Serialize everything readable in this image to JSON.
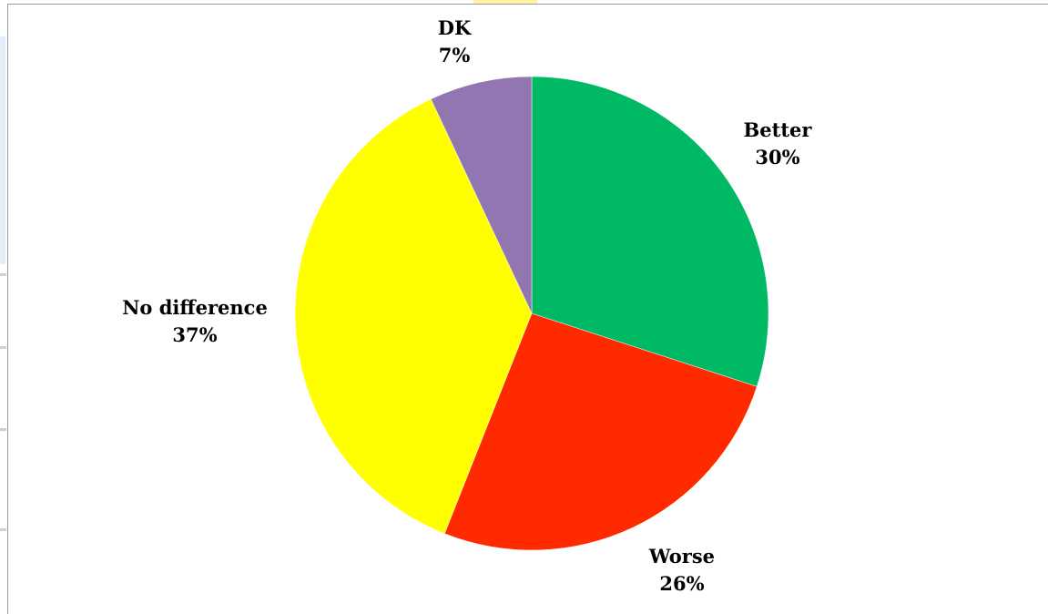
{
  "chart_data": {
    "type": "pie",
    "title": "",
    "slices": [
      {
        "label": "Better",
        "value": 30,
        "display": "30%",
        "color": "#00b964"
      },
      {
        "label": "Worse",
        "value": 26,
        "display": "26%",
        "color": "#ff2a00"
      },
      {
        "label": "No difference",
        "value": 37,
        "display": "37%",
        "color": "#ffff00"
      },
      {
        "label": "DK",
        "value": 7,
        "display": "7%",
        "color": "#9176b1"
      }
    ],
    "start_angle_deg": 0,
    "direction": "clockwise",
    "legend": "none",
    "data_labels": "outside"
  }
}
